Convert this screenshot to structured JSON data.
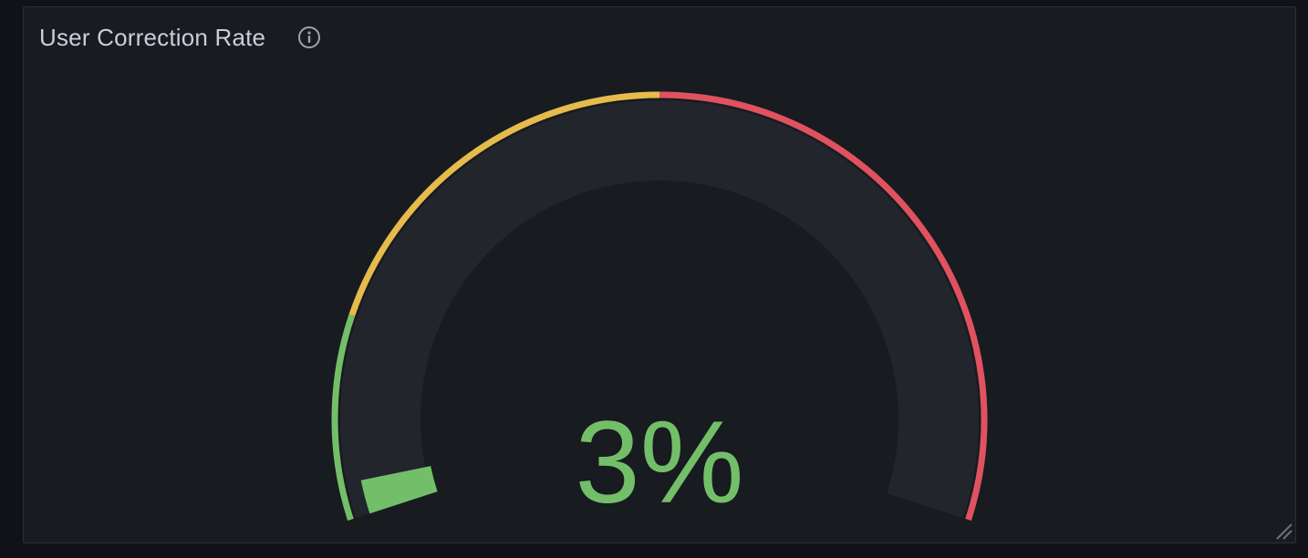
{
  "panel": {
    "title": "User Correction Rate",
    "info_icon": "info-circle-icon",
    "resize_icon": "resize-handle-icon"
  },
  "gauge": {
    "value": 3,
    "display_value": "3%",
    "min": 0,
    "max": 100,
    "thresholds": [
      {
        "from": 0,
        "to": 17,
        "color": "#73bf69"
      },
      {
        "from": 17,
        "to": 50,
        "color": "#f2cc0c"
      },
      {
        "from": 50,
        "to": 100,
        "color": "#f2495c"
      }
    ],
    "value_color": "#73bf69",
    "track_color": "#22252b"
  },
  "colors": {
    "background": "#111217",
    "panel_bg": "#181b1f",
    "title": "#ccccdc",
    "green": "#73bf69",
    "yellow": "#e5bb4c",
    "red": "#e0525f"
  }
}
